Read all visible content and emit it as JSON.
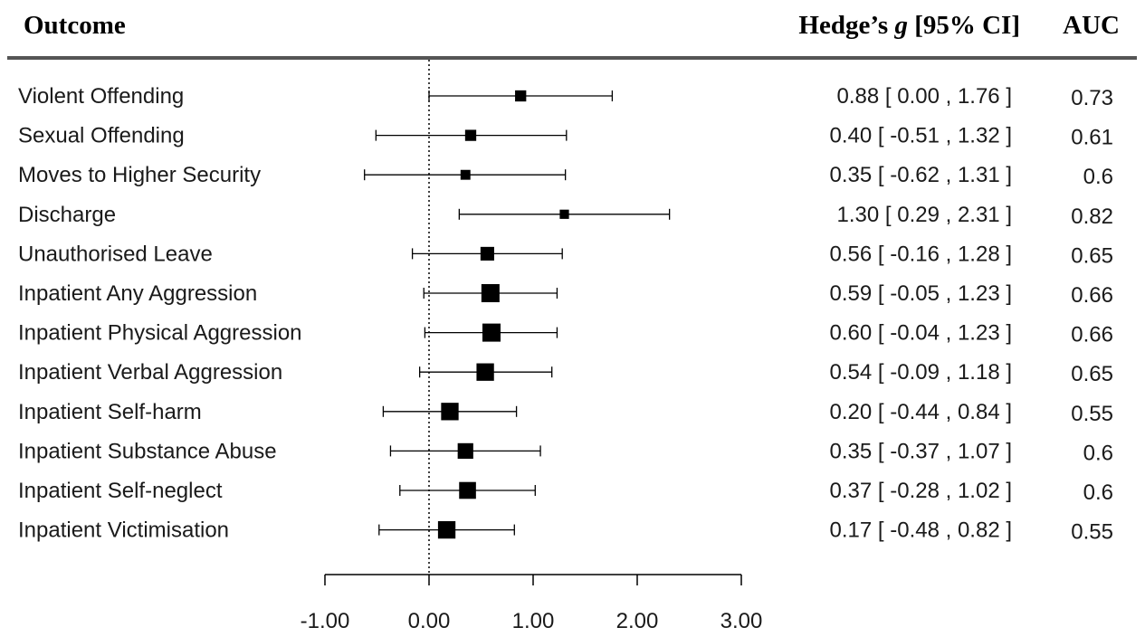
{
  "header": {
    "outcome": "Outcome",
    "effect_prefix": "Hedge’s ",
    "effect_italic": "g",
    "effect_suffix": " [95% CI]",
    "auc": "AUC"
  },
  "chart_data": {
    "type": "forest",
    "xlim": [
      -1.0,
      3.0
    ],
    "x_ticks": [
      -1.0,
      0.0,
      1.0,
      2.0,
      3.0
    ],
    "x_tick_labels": [
      "-1.00",
      "0.00",
      "1.00",
      "2.00",
      "3.00"
    ],
    "reference_line": 0.0,
    "rows": [
      {
        "outcome": "Violent Offending",
        "g": 0.88,
        "lo": 0.0,
        "hi": 1.76,
        "ci_text": "0.88 [  0.00 , 1.76 ]",
        "auc": "0.73",
        "weight": 0.45
      },
      {
        "outcome": "Sexual Offending",
        "g": 0.4,
        "lo": -0.51,
        "hi": 1.32,
        "ci_text": "0.40 [ -0.51 , 1.32 ]",
        "auc": "0.61",
        "weight": 0.45
      },
      {
        "outcome": "Moves to Higher Security",
        "g": 0.35,
        "lo": -0.62,
        "hi": 1.31,
        "ci_text": "0.35 [ -0.62 , 1.31 ]",
        "auc": "0.6",
        "weight": 0.35
      },
      {
        "outcome": "Discharge",
        "g": 1.3,
        "lo": 0.29,
        "hi": 2.31,
        "ci_text": "1.30 [  0.29 , 2.31 ]",
        "auc": "0.82",
        "weight": 0.3
      },
      {
        "outcome": "Unauthorised Leave",
        "g": 0.56,
        "lo": -0.16,
        "hi": 1.28,
        "ci_text": "0.56 [ -0.16 , 1.28 ]",
        "auc": "0.65",
        "weight": 0.65
      },
      {
        "outcome": "Inpatient Any Aggression",
        "g": 0.59,
        "lo": -0.05,
        "hi": 1.23,
        "ci_text": "0.59 [ -0.05 , 1.23 ]",
        "auc": "0.66",
        "weight": 1.0
      },
      {
        "outcome": "Inpatient Physical Aggression",
        "g": 0.6,
        "lo": -0.04,
        "hi": 1.23,
        "ci_text": "0.60 [ -0.04 , 1.23 ]",
        "auc": "0.66",
        "weight": 1.0
      },
      {
        "outcome": "Inpatient Verbal Aggression",
        "g": 0.54,
        "lo": -0.09,
        "hi": 1.18,
        "ci_text": "0.54 [ -0.09 , 1.18 ]",
        "auc": "0.65",
        "weight": 0.95
      },
      {
        "outcome": "Inpatient Self-harm",
        "g": 0.2,
        "lo": -0.44,
        "hi": 0.84,
        "ci_text": "0.20 [ -0.44 , 0.84 ]",
        "auc": "0.55",
        "weight": 0.95
      },
      {
        "outcome": "Inpatient Substance Abuse",
        "g": 0.35,
        "lo": -0.37,
        "hi": 1.07,
        "ci_text": "0.35 [ -0.37 , 1.07 ]",
        "auc": "0.6",
        "weight": 0.8
      },
      {
        "outcome": "Inpatient Self-neglect",
        "g": 0.37,
        "lo": -0.28,
        "hi": 1.02,
        "ci_text": "0.37 [ -0.28 , 1.02 ]",
        "auc": "0.6",
        "weight": 0.9
      },
      {
        "outcome": "Inpatient Victimisation",
        "g": 0.17,
        "lo": -0.48,
        "hi": 0.82,
        "ci_text": "0.17 [ -0.48 , 0.82 ]",
        "auc": "0.55",
        "weight": 0.95
      }
    ]
  }
}
